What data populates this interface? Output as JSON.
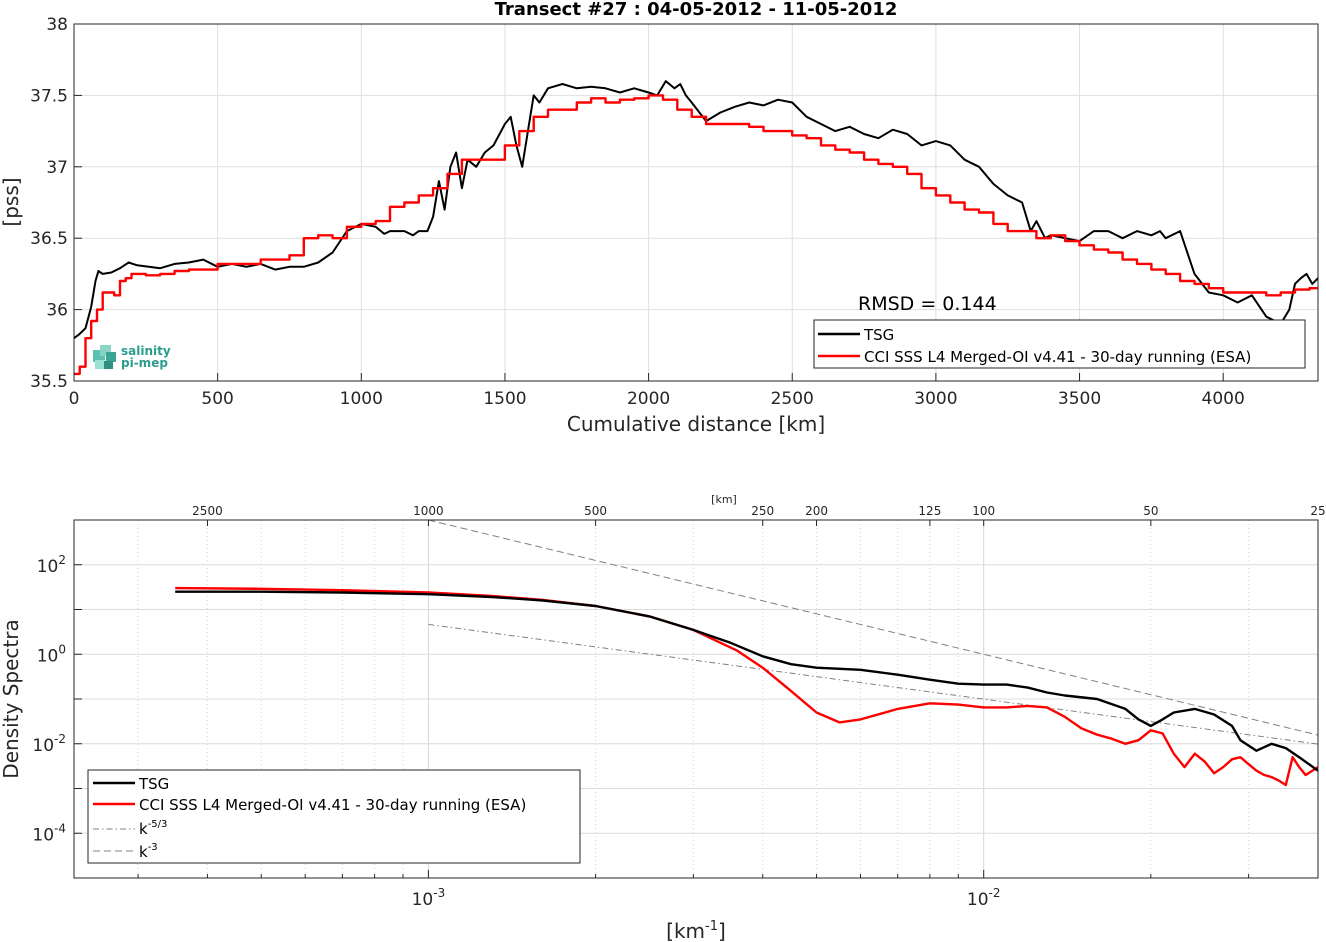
{
  "chart_data": [
    {
      "type": "line",
      "title": "Transect #27 : 04-05-2012 - 11-05-2012",
      "xlabel": "Cumulative distance [km]",
      "ylabel": "[pss]",
      "xlim": [
        0,
        4330
      ],
      "ylim": [
        35.5,
        38
      ],
      "grid": true,
      "xticks": [
        "0",
        "500",
        "1000",
        "1500",
        "2000",
        "2500",
        "3000",
        "3500",
        "4000"
      ],
      "yticks": [
        "35.5",
        "36",
        "36.5",
        "37",
        "37.5",
        "38"
      ],
      "annotation": "RMSD = 0.144",
      "logo": [
        "salinity",
        "pi-mep"
      ],
      "legend_position": "bottom-right",
      "series": [
        {
          "name": "TSG",
          "color": "#000000",
          "x": [
            0,
            20,
            40,
            60,
            75,
            85,
            100,
            130,
            160,
            190,
            220,
            260,
            300,
            350,
            400,
            450,
            500,
            550,
            600,
            650,
            700,
            750,
            800,
            850,
            900,
            950,
            1000,
            1050,
            1080,
            1100,
            1150,
            1180,
            1200,
            1230,
            1250,
            1270,
            1290,
            1310,
            1330,
            1350,
            1370,
            1400,
            1430,
            1460,
            1500,
            1520,
            1540,
            1560,
            1580,
            1600,
            1620,
            1650,
            1700,
            1750,
            1800,
            1850,
            1900,
            1950,
            2000,
            2030,
            2060,
            2090,
            2110,
            2130,
            2150,
            2200,
            2250,
            2300,
            2350,
            2400,
            2450,
            2500,
            2550,
            2600,
            2650,
            2700,
            2750,
            2800,
            2850,
            2900,
            2950,
            3000,
            3050,
            3100,
            3150,
            3200,
            3250,
            3300,
            3330,
            3350,
            3380,
            3400,
            3450,
            3500,
            3550,
            3600,
            3650,
            3700,
            3750,
            3780,
            3800,
            3850,
            3900,
            3950,
            4000,
            4050,
            4100,
            4150,
            4200,
            4230,
            4250,
            4270,
            4290,
            4310,
            4330
          ],
          "y": [
            35.8,
            35.83,
            35.87,
            36.02,
            36.2,
            36.27,
            36.25,
            36.26,
            36.29,
            36.33,
            36.31,
            36.3,
            36.29,
            36.32,
            36.33,
            36.35,
            36.3,
            36.32,
            36.3,
            36.32,
            36.28,
            36.3,
            36.3,
            36.33,
            36.4,
            36.55,
            36.6,
            36.58,
            36.53,
            36.55,
            36.55,
            36.52,
            36.55,
            36.55,
            36.65,
            36.9,
            36.7,
            37.0,
            37.1,
            36.85,
            37.05,
            37.0,
            37.1,
            37.15,
            37.3,
            37.35,
            37.15,
            37.0,
            37.25,
            37.5,
            37.45,
            37.55,
            37.58,
            37.55,
            37.56,
            37.55,
            37.52,
            37.55,
            37.52,
            37.5,
            37.6,
            37.55,
            37.58,
            37.5,
            37.45,
            37.32,
            37.38,
            37.42,
            37.45,
            37.43,
            37.47,
            37.45,
            37.35,
            37.3,
            37.25,
            37.28,
            37.23,
            37.2,
            37.26,
            37.23,
            37.15,
            37.18,
            37.15,
            37.05,
            37.0,
            36.88,
            36.8,
            36.75,
            36.55,
            36.62,
            36.5,
            36.52,
            36.5,
            36.48,
            36.55,
            36.55,
            36.5,
            36.55,
            36.52,
            36.55,
            36.5,
            36.55,
            36.25,
            36.12,
            36.1,
            36.05,
            36.1,
            35.95,
            35.9,
            36.0,
            36.18,
            36.22,
            36.25,
            36.18,
            36.22
          ]
        },
        {
          "name": "CCI SSS L4 Merged-OI v4.41 - 30-day running (ESA)",
          "color": "#ff0000",
          "x": [
            0,
            20,
            40,
            60,
            80,
            100,
            120,
            140,
            160,
            180,
            200,
            250,
            300,
            350,
            400,
            450,
            500,
            550,
            600,
            650,
            700,
            750,
            800,
            850,
            900,
            950,
            1000,
            1050,
            1100,
            1150,
            1200,
            1250,
            1300,
            1350,
            1400,
            1450,
            1500,
            1550,
            1600,
            1650,
            1700,
            1750,
            1800,
            1850,
            1900,
            1950,
            2000,
            2050,
            2100,
            2150,
            2200,
            2250,
            2300,
            2350,
            2400,
            2450,
            2500,
            2550,
            2600,
            2650,
            2700,
            2750,
            2800,
            2850,
            2900,
            2950,
            3000,
            3050,
            3100,
            3150,
            3200,
            3250,
            3300,
            3350,
            3400,
            3450,
            3500,
            3550,
            3600,
            3650,
            3700,
            3750,
            3800,
            3850,
            3900,
            3950,
            4000,
            4050,
            4100,
            4150,
            4200,
            4250,
            4300,
            4330
          ],
          "y": [
            35.55,
            35.6,
            35.8,
            35.92,
            36.0,
            36.12,
            36.12,
            36.1,
            36.2,
            36.22,
            36.25,
            36.24,
            36.25,
            36.27,
            36.28,
            36.28,
            36.32,
            36.32,
            36.32,
            36.35,
            36.35,
            36.38,
            36.5,
            36.52,
            36.5,
            36.58,
            36.6,
            36.62,
            36.72,
            36.75,
            36.8,
            36.85,
            36.95,
            37.05,
            37.05,
            37.05,
            37.15,
            37.25,
            37.35,
            37.4,
            37.4,
            37.45,
            37.48,
            37.45,
            37.47,
            37.48,
            37.5,
            37.47,
            37.4,
            37.35,
            37.3,
            37.3,
            37.3,
            37.28,
            37.25,
            37.25,
            37.22,
            37.2,
            37.15,
            37.12,
            37.1,
            37.05,
            37.02,
            37.0,
            36.95,
            36.85,
            36.8,
            36.75,
            36.7,
            36.68,
            36.6,
            36.55,
            36.55,
            36.5,
            36.52,
            36.48,
            36.45,
            36.42,
            36.4,
            36.35,
            36.32,
            36.28,
            36.25,
            36.2,
            36.18,
            36.15,
            36.12,
            36.12,
            36.12,
            36.1,
            36.12,
            36.14,
            36.15,
            36.15
          ]
        }
      ]
    },
    {
      "type": "line",
      "title": "",
      "xlabel": "[km",
      "xlabel_sup": "-1",
      "xlabel_tail": "]",
      "ylabel": "Density Spectra",
      "top_axis_label": "[km]",
      "top_ticks": [
        "2500",
        "1000",
        "500",
        "250",
        "200",
        "125",
        "100",
        "50",
        "25"
      ],
      "top_tick_values_km": [
        2500,
        1000,
        500,
        250,
        200,
        125,
        100,
        50,
        25
      ],
      "x_scale": "log",
      "y_scale": "log",
      "xlim": [
        0.00023,
        0.04
      ],
      "ylim": [
        1e-05,
        1000
      ],
      "xticks": [
        0.001,
        0.01
      ],
      "xtick_labels": [
        [
          "10",
          "-3"
        ],
        [
          "10",
          "-2"
        ]
      ],
      "yticks": [
        0.0001,
        0.01,
        1,
        100
      ],
      "ytick_labels": [
        [
          "10",
          "-4"
        ],
        [
          "10",
          "-2"
        ],
        [
          "10",
          "0"
        ],
        [
          "10",
          "2"
        ]
      ],
      "grid": true,
      "legend_position": "bottom-left",
      "series": [
        {
          "name": "TSG",
          "color": "#000000",
          "x": [
            0.00035,
            0.0005,
            0.0007,
            0.001,
            0.0013,
            0.0016,
            0.002,
            0.0025,
            0.003,
            0.0035,
            0.004,
            0.0045,
            0.005,
            0.006,
            0.007,
            0.008,
            0.009,
            0.01,
            0.011,
            0.012,
            0.013,
            0.014,
            0.016,
            0.018,
            0.019,
            0.02,
            0.021,
            0.022,
            0.024,
            0.026,
            0.028,
            0.029,
            0.031,
            0.033,
            0.035,
            0.037,
            0.04
          ],
          "y": [
            25,
            25,
            24,
            22,
            19,
            16,
            12,
            7,
            3.5,
            1.8,
            0.9,
            0.6,
            0.5,
            0.45,
            0.35,
            0.27,
            0.22,
            0.21,
            0.21,
            0.18,
            0.14,
            0.12,
            0.1,
            0.06,
            0.035,
            0.025,
            0.035,
            0.05,
            0.06,
            0.045,
            0.025,
            0.012,
            0.007,
            0.01,
            0.008,
            0.005,
            0.0025
          ]
        },
        {
          "name": "CCI SSS L4 Merged-OI v4.41 - 30-day running (ESA)",
          "color": "#ff0000",
          "x": [
            0.00035,
            0.0005,
            0.0007,
            0.001,
            0.0013,
            0.0016,
            0.002,
            0.0025,
            0.003,
            0.0033,
            0.0036,
            0.004,
            0.0045,
            0.005,
            0.0055,
            0.006,
            0.007,
            0.008,
            0.009,
            0.01,
            0.011,
            0.012,
            0.013,
            0.014,
            0.015,
            0.016,
            0.017,
            0.018,
            0.019,
            0.02,
            0.021,
            0.022,
            0.023,
            0.024,
            0.025,
            0.026,
            0.027,
            0.028,
            0.029,
            0.03,
            0.031,
            0.032,
            0.033,
            0.034,
            0.035,
            0.036,
            0.037,
            0.038,
            0.04
          ],
          "y": [
            30,
            29,
            27,
            24,
            20,
            16.5,
            12,
            7,
            3.5,
            2.0,
            1.2,
            0.5,
            0.15,
            0.05,
            0.03,
            0.035,
            0.06,
            0.08,
            0.075,
            0.065,
            0.065,
            0.07,
            0.065,
            0.04,
            0.022,
            0.016,
            0.013,
            0.01,
            0.012,
            0.02,
            0.017,
            0.006,
            0.003,
            0.006,
            0.004,
            0.0022,
            0.003,
            0.0045,
            0.005,
            0.0035,
            0.0025,
            0.002,
            0.0018,
            0.0015,
            0.0012,
            0.005,
            0.003,
            0.002,
            0.003
          ]
        },
        {
          "name": "k",
          "name_sup": "-5/3",
          "color": "#808080",
          "dash": "dashdot",
          "x": [
            0.001,
            0.04
          ],
          "y": [
            4.64,
            0.0098
          ]
        },
        {
          "name": "k",
          "name_sup": "-3",
          "color": "#808080",
          "dash": "dash",
          "x": [
            0.001,
            0.04
          ],
          "y": [
            1000,
            0.0156
          ]
        }
      ]
    }
  ]
}
